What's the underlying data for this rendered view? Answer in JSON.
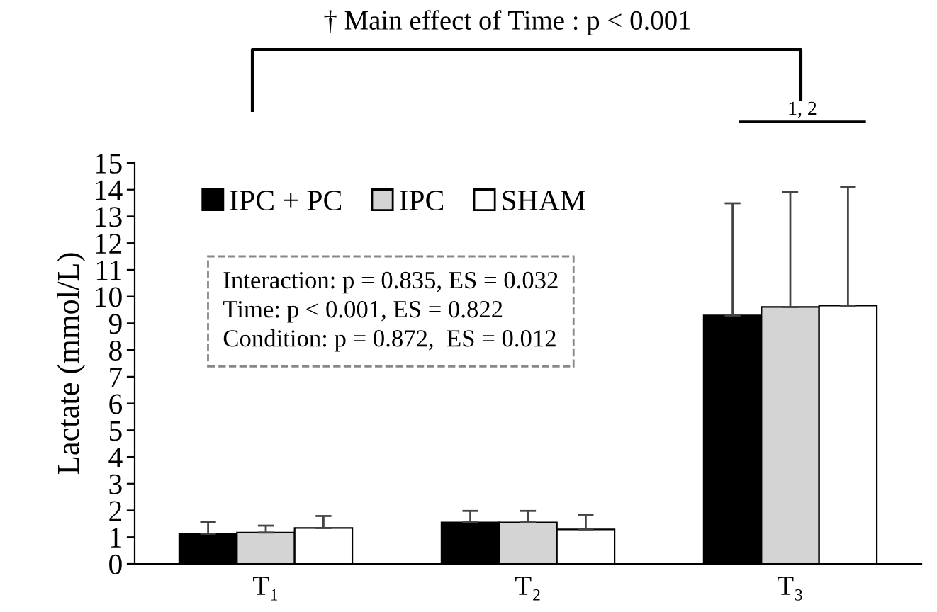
{
  "chart_data": {
    "type": "bar",
    "ylabel": "Lactate (mmol/L)",
    "categories": [
      "T₁",
      "T₂",
      "T₃"
    ],
    "series": [
      {
        "name": "IPC + PC",
        "color": "#000000",
        "values": [
          1.13,
          1.55,
          9.29
        ],
        "errors": [
          0.44,
          0.43,
          4.2
        ]
      },
      {
        "name": "IPC",
        "color": "#d4d4d4",
        "values": [
          1.17,
          1.55,
          9.61
        ],
        "errors": [
          0.26,
          0.43,
          4.3
        ]
      },
      {
        "name": "SHAM",
        "color": "#ffffff",
        "values": [
          1.34,
          1.29,
          9.66
        ],
        "errors": [
          0.45,
          0.55,
          4.45
        ]
      }
    ],
    "ylim": [
      0,
      15
    ],
    "yticks": [
      0,
      1,
      2,
      3,
      4,
      5,
      6,
      7,
      8,
      9,
      10,
      11,
      12,
      13,
      14,
      15
    ],
    "grid": false,
    "legend": "top",
    "annotations": [
      "† Main effect of Time : p < 0.001",
      "1, 2",
      "Interaction: p = 0.835, ES = 0.032",
      "Time: p < 0.001, ES = 0.822",
      "Condition: p = 0.872,  ES = 0.012"
    ]
  }
}
